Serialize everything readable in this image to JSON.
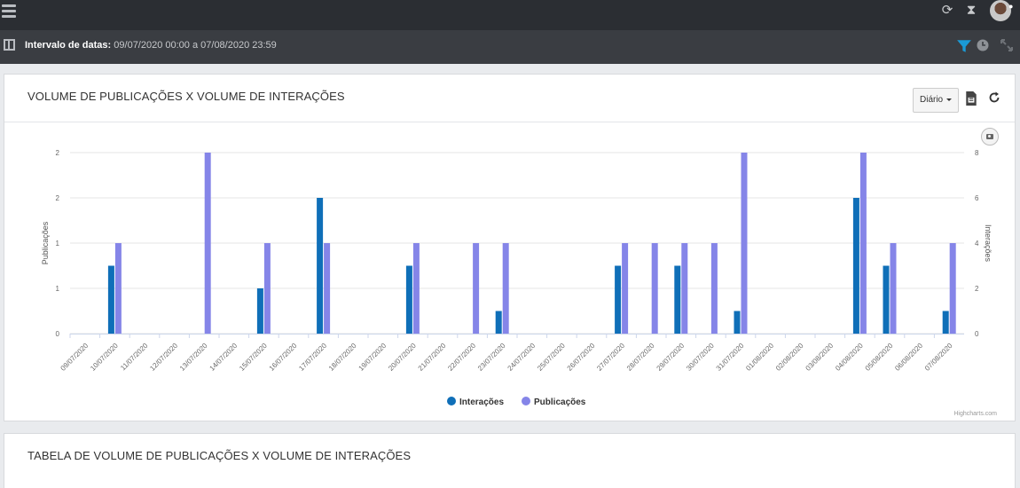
{
  "header": {
    "range_label": "Intervalo de datas",
    "range_value": "09/07/2020 00:00 a 07/08/2020 23:59"
  },
  "card1": {
    "title": "VOLUME DE PUBLICAÇÕES X VOLUME DE INTERAÇÕES",
    "period_button": "Diário",
    "credits": "Highcharts.com"
  },
  "card2": {
    "title": "TABELA DE VOLUME DE PUBLICAÇÕES X VOLUME DE INTERAÇÕES"
  },
  "icons": {
    "menu": "hamburger-icon",
    "refresh": "refresh-icon",
    "timer": "hourglass-icon",
    "layout": "layout-icon",
    "filter": "filter-icon",
    "clock": "clock-icon",
    "expand": "expand-icon",
    "export": "file-export-icon",
    "reload": "reload-icon",
    "camera": "camera-icon"
  },
  "colors": {
    "interacoes": "#0f6fb8",
    "publicacoes": "#8585e8",
    "filter": "#1a9ad6"
  },
  "chart_data": {
    "type": "bar",
    "categories": [
      "09/07/2020",
      "10/07/2020",
      "11/07/2020",
      "12/07/2020",
      "13/07/2020",
      "14/07/2020",
      "15/07/2020",
      "16/07/2020",
      "17/07/2020",
      "18/07/2020",
      "19/07/2020",
      "20/07/2020",
      "21/07/2020",
      "22/07/2020",
      "23/07/2020",
      "24/07/2020",
      "25/07/2020",
      "26/07/2020",
      "27/07/2020",
      "28/07/2020",
      "29/07/2020",
      "30/07/2020",
      "31/07/2020",
      "01/08/2020",
      "02/08/2020",
      "03/08/2020",
      "04/08/2020",
      "05/08/2020",
      "06/08/2020",
      "07/08/2020"
    ],
    "series": [
      {
        "name": "Interações",
        "axis": "right",
        "values": [
          0,
          3,
          0,
          0,
          0,
          0,
          2,
          0,
          6,
          0,
          0,
          3,
          0,
          0,
          1,
          0,
          0,
          0,
          3,
          0,
          3,
          0,
          1,
          0,
          0,
          0,
          6,
          3,
          0,
          1
        ]
      },
      {
        "name": "Publicações",
        "axis": "left",
        "values": [
          0,
          1,
          0,
          0,
          2,
          0,
          1,
          0,
          1,
          0,
          0,
          1,
          0,
          1,
          1,
          0,
          0,
          0,
          1,
          1,
          1,
          1,
          2,
          0,
          0,
          0,
          2,
          1,
          0,
          1
        ]
      }
    ],
    "yaxis_left": {
      "label": "Publicações",
      "range": [
        0,
        2
      ],
      "tick_labels": [
        "0",
        "1",
        "1",
        "2",
        "2"
      ]
    },
    "yaxis_right": {
      "label": "Interações",
      "range": [
        0,
        8
      ],
      "tick_labels": [
        "0",
        "2",
        "4",
        "6",
        "8"
      ]
    },
    "legend": "bottom-center",
    "grid": true
  }
}
